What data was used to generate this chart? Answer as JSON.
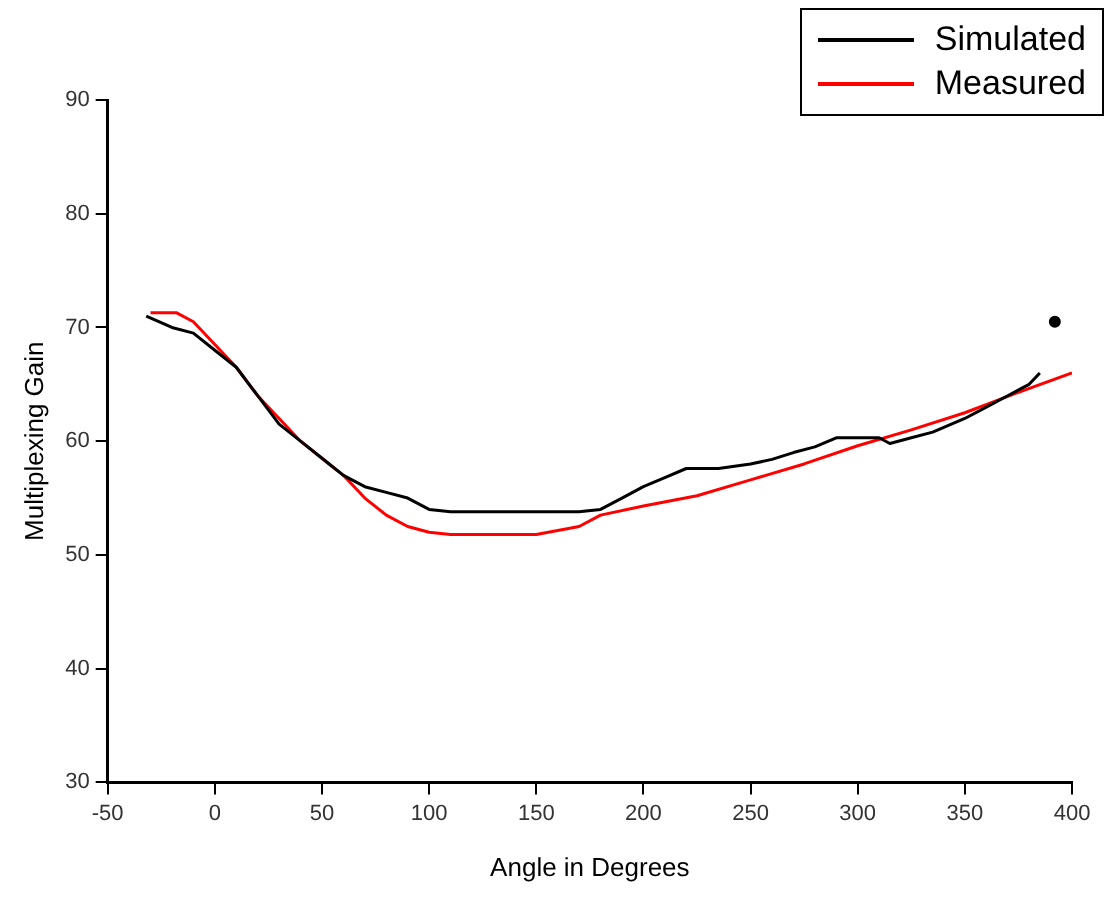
{
  "chart_data": {
    "type": "line",
    "xlabel": "Angle in Degrees",
    "ylabel": "Multiplexing Gain",
    "xlim": [
      -50,
      400
    ],
    "xticks": [
      -50,
      0,
      50,
      100,
      150,
      200,
      250,
      300,
      350,
      400
    ],
    "ylim": [
      30,
      90
    ],
    "yticks": [
      30,
      40,
      50,
      60,
      70,
      80,
      90
    ],
    "grid": false,
    "legend": "top right",
    "marker": "none",
    "line_style": "solid",
    "series": [
      {
        "name": "Simulated",
        "color": "#000000",
        "x": [
          -32,
          -20,
          -10,
          0,
          10,
          20,
          30,
          40,
          50,
          60,
          70,
          80,
          90,
          100,
          110,
          130,
          150,
          170,
          180,
          190,
          200,
          210,
          220,
          235,
          250,
          260,
          270,
          280,
          290,
          300,
          310,
          315,
          325,
          335,
          350,
          360,
          370,
          380,
          385
        ],
        "values": [
          71,
          70,
          69.5,
          68,
          66.5,
          64,
          61.5,
          60,
          58.5,
          57,
          56,
          55.5,
          55,
          54,
          53.8,
          53.8,
          53.8,
          53.8,
          54,
          55,
          56,
          56.8,
          57.6,
          57.6,
          58,
          58.4,
          59,
          59.5,
          60.3,
          60.3,
          60.3,
          59.8,
          60.3,
          60.8,
          62,
          63,
          64,
          65,
          66
        ]
      },
      {
        "name": "Measured",
        "color": "#ff0000",
        "x": [
          -30,
          -18,
          -10,
          0,
          10,
          20,
          30,
          40,
          50,
          60,
          70,
          80,
          90,
          100,
          110,
          130,
          150,
          170,
          180,
          200,
          225,
          250,
          275,
          300,
          325,
          350,
          375,
          400
        ],
        "values": [
          71.3,
          71.3,
          70.5,
          68.5,
          66.5,
          64,
          62,
          60,
          58.5,
          57,
          55,
          53.5,
          52.5,
          52,
          51.8,
          51.8,
          51.8,
          52.5,
          53.5,
          54.3,
          55.2,
          56.6,
          58,
          59.6,
          61,
          62.5,
          64.3,
          66
        ]
      },
      {
        "type": "scatter",
        "color": "#000000",
        "marker": "circle",
        "x": [
          392
        ],
        "values": [
          70.5
        ]
      }
    ]
  }
}
